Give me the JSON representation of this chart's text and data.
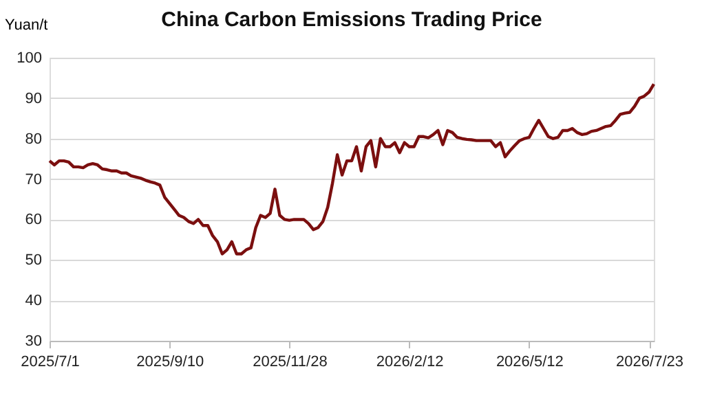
{
  "chart_data": {
    "type": "line",
    "title": "China Carbon Emissions Trading Price",
    "ylabel": "Yuan/t",
    "categories": [
      "2025/7/1",
      null,
      null,
      null,
      null,
      null,
      null,
      null,
      null,
      null,
      null,
      null,
      null,
      null,
      null,
      null,
      null,
      null,
      null,
      null,
      null,
      null,
      null,
      null,
      null,
      "2025/9/10",
      null,
      null,
      null,
      null,
      null,
      null,
      null,
      null,
      null,
      null,
      null,
      null,
      null,
      null,
      null,
      null,
      null,
      null,
      null,
      null,
      null,
      null,
      null,
      null,
      "2025/11/28",
      null,
      null,
      null,
      null,
      null,
      null,
      null,
      null,
      null,
      null,
      null,
      null,
      null,
      null,
      null,
      null,
      null,
      null,
      null,
      null,
      null,
      null,
      null,
      null,
      "2026/2/12",
      null,
      null,
      null,
      null,
      null,
      null,
      null,
      null,
      null,
      null,
      null,
      null,
      null,
      null,
      null,
      null,
      null,
      null,
      null,
      null,
      null,
      null,
      null,
      null,
      "2026/5/12",
      null,
      null,
      null,
      null,
      null,
      null,
      null,
      null,
      null,
      null,
      null,
      null,
      null,
      null,
      null,
      null,
      null,
      null,
      null,
      null,
      null,
      null,
      null,
      null,
      "2026/7/23",
      null
    ],
    "series": [
      {
        "color": "#7b0f0f",
        "values": [
          74.5,
          73.5,
          74.5,
          74.5,
          74.2,
          73,
          73,
          72.8,
          73.5,
          73.8,
          73.5,
          72.5,
          72.3,
          72,
          72,
          71.5,
          71.5,
          70.8,
          70.5,
          70.2,
          69.7,
          69.3,
          69,
          68.5,
          65.5,
          64,
          62.5,
          61,
          60.5,
          59.5,
          59,
          60,
          58.5,
          58.5,
          56,
          54.5,
          51.5,
          52.5,
          54.5,
          51.5,
          51.5,
          52.5,
          53,
          58,
          61,
          60.5,
          61.5,
          67.5,
          61,
          60,
          59.8,
          60,
          60,
          60,
          59,
          57.5,
          58,
          59.5,
          63,
          69,
          76,
          71,
          74.5,
          74.5,
          78,
          72,
          78,
          79.5,
          73,
          80,
          78,
          78,
          79,
          76.5,
          79,
          78,
          78,
          80.5,
          80.5,
          80.2,
          81,
          82,
          78.5,
          82,
          81.5,
          80.3,
          80,
          79.8,
          79.7,
          79.5,
          79.5,
          79.5,
          79.5,
          78,
          79,
          75.5,
          77,
          78.3,
          79.5,
          80,
          80.3,
          82.5,
          84.5,
          82.5,
          80.5,
          80,
          80.3,
          82,
          82,
          82.5,
          81.5,
          81,
          81.2,
          81.8,
          82,
          82.5,
          83,
          83.2,
          84.5,
          86,
          86.3,
          86.5,
          88,
          90,
          90.5,
          91.5,
          93.5
        ]
      }
    ],
    "ylim": [
      30,
      100
    ],
    "yticks": [
      30,
      40,
      50,
      60,
      70,
      80,
      90,
      100
    ],
    "grid": "y",
    "legend": false,
    "marker": "none",
    "line_style": "solid"
  }
}
